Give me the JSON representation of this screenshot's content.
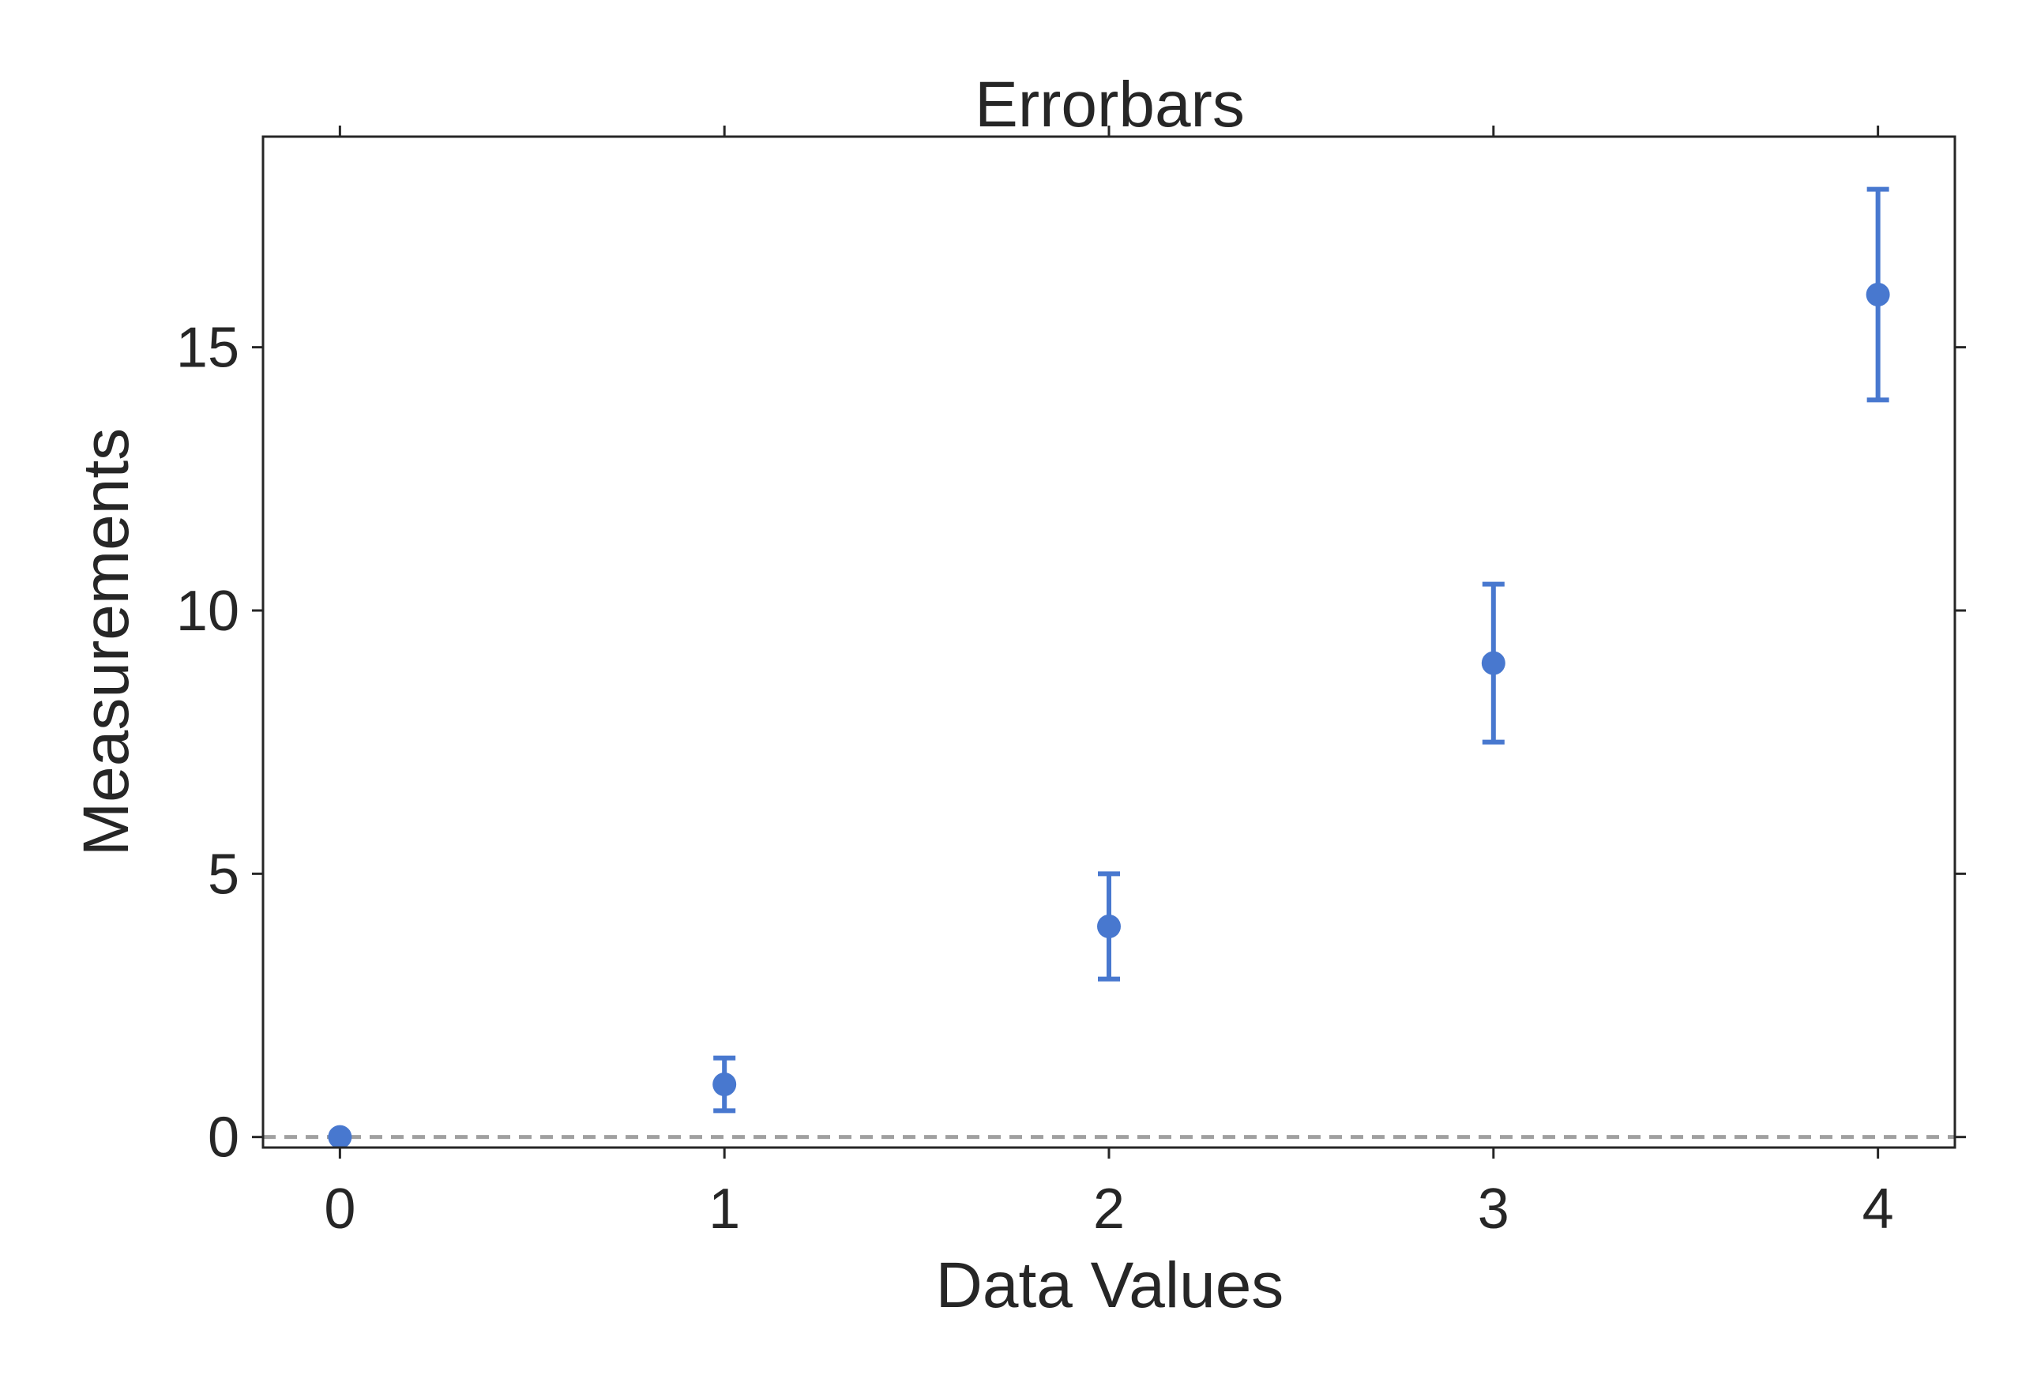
{
  "chart_data": {
    "type": "scatter",
    "title": "Errorbars",
    "xlabel": "Data Values",
    "ylabel": "Measurements",
    "xlim": [
      -0.2,
      4.2
    ],
    "ylim": [
      -0.2,
      19
    ],
    "xticks": [
      0,
      1,
      2,
      3,
      4
    ],
    "xtick_labels": [
      "0",
      "1",
      "2",
      "3",
      "4"
    ],
    "yticks": [
      0,
      5,
      10,
      15
    ],
    "ytick_labels": [
      "0",
      "5",
      "10",
      "15"
    ],
    "grid": false,
    "reference_line": {
      "y": 0,
      "style": "dashed",
      "color": "#a0a0a0"
    },
    "series": [
      {
        "x": [
          0,
          1,
          2,
          3,
          4
        ],
        "y": [
          0,
          1,
          4,
          9,
          16
        ],
        "yerr": [
          0,
          0.5,
          1,
          1.5,
          2
        ],
        "color": "#4878cf"
      }
    ]
  }
}
